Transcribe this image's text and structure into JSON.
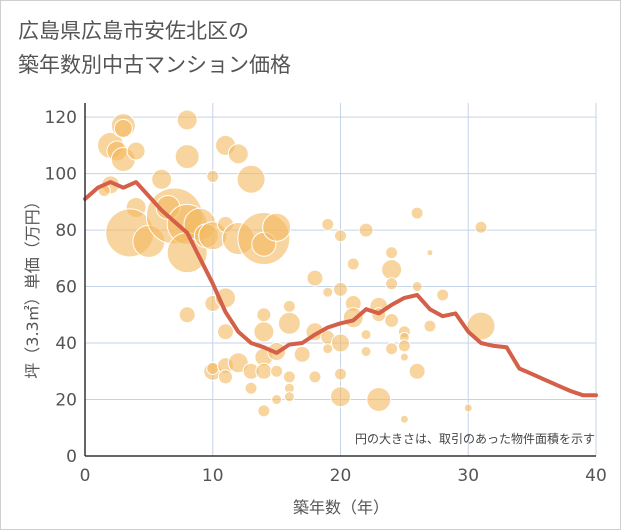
{
  "title": {
    "line1": "広島県広島市安佐北区の",
    "line2": "築年数別中古マンション価格"
  },
  "colors": {
    "bubble_fill": "#f3b95f",
    "bubble_opacity": 0.6,
    "line": "#d4604a",
    "grid": "#c5d3e6",
    "text": "#555555"
  },
  "chart_data": {
    "type": "scatter",
    "xlabel": "築年数（年）",
    "ylabel": "坪（3.3㎡）単価（万円）",
    "xlim": [
      0,
      40
    ],
    "ylim": [
      0,
      125
    ],
    "xticks": [
      "0",
      "10",
      "20",
      "30",
      "40"
    ],
    "yticks": [
      "0",
      "20",
      "40",
      "60",
      "80",
      "100",
      "120"
    ],
    "grid": true,
    "annotation": "円の大きさは、取引のあった物件面積を示す",
    "bubbles": [
      {
        "x": 2,
        "y": 110,
        "size": 13
      },
      {
        "x": 2.5,
        "y": 108,
        "size": 10
      },
      {
        "x": 3,
        "y": 117,
        "size": 12
      },
      {
        "x": 3,
        "y": 116,
        "size": 9
      },
      {
        "x": 3,
        "y": 105,
        "size": 12
      },
      {
        "x": 4,
        "y": 108,
        "size": 9
      },
      {
        "x": 2,
        "y": 96,
        "size": 9
      },
      {
        "x": 1.5,
        "y": 94,
        "size": 6
      },
      {
        "x": 4,
        "y": 88,
        "size": 10
      },
      {
        "x": 3.5,
        "y": 79,
        "size": 24
      },
      {
        "x": 5,
        "y": 76,
        "size": 16
      },
      {
        "x": 6,
        "y": 98,
        "size": 10
      },
      {
        "x": 7,
        "y": 85,
        "size": 28
      },
      {
        "x": 6.5,
        "y": 88,
        "size": 12
      },
      {
        "x": 8,
        "y": 82,
        "size": 20
      },
      {
        "x": 8,
        "y": 72,
        "size": 20
      },
      {
        "x": 9,
        "y": 82,
        "size": 16
      },
      {
        "x": 9.5,
        "y": 78,
        "size": 12
      },
      {
        "x": 8,
        "y": 119,
        "size": 10
      },
      {
        "x": 8,
        "y": 106,
        "size": 12
      },
      {
        "x": 10,
        "y": 99,
        "size": 6
      },
      {
        "x": 11,
        "y": 110,
        "size": 10
      },
      {
        "x": 12,
        "y": 107,
        "size": 10
      },
      {
        "x": 13,
        "y": 98,
        "size": 14
      },
      {
        "x": 10,
        "y": 78,
        "size": 14
      },
      {
        "x": 11,
        "y": 82,
        "size": 8
      },
      {
        "x": 12,
        "y": 77,
        "size": 16
      },
      {
        "x": 14,
        "y": 77,
        "size": 26
      },
      {
        "x": 14,
        "y": 75,
        "size": 12
      },
      {
        "x": 15,
        "y": 81,
        "size": 14
      },
      {
        "x": 10,
        "y": 54,
        "size": 8
      },
      {
        "x": 11,
        "y": 56,
        "size": 10
      },
      {
        "x": 8,
        "y": 50,
        "size": 8
      },
      {
        "x": 11,
        "y": 44,
        "size": 8
      },
      {
        "x": 10,
        "y": 30,
        "size": 9
      },
      {
        "x": 10,
        "y": 31,
        "size": 6
      },
      {
        "x": 11,
        "y": 32,
        "size": 8
      },
      {
        "x": 12,
        "y": 33,
        "size": 10
      },
      {
        "x": 11,
        "y": 28,
        "size": 7
      },
      {
        "x": 13,
        "y": 30,
        "size": 8
      },
      {
        "x": 13,
        "y": 24,
        "size": 6
      },
      {
        "x": 14,
        "y": 50,
        "size": 7
      },
      {
        "x": 14,
        "y": 44,
        "size": 10
      },
      {
        "x": 14,
        "y": 35,
        "size": 9
      },
      {
        "x": 14,
        "y": 30,
        "size": 8
      },
      {
        "x": 15,
        "y": 37,
        "size": 9
      },
      {
        "x": 15,
        "y": 30,
        "size": 6
      },
      {
        "x": 14,
        "y": 16,
        "size": 6
      },
      {
        "x": 15,
        "y": 20,
        "size": 5
      },
      {
        "x": 16,
        "y": 53,
        "size": 6
      },
      {
        "x": 16,
        "y": 47,
        "size": 11
      },
      {
        "x": 16,
        "y": 28,
        "size": 6
      },
      {
        "x": 16,
        "y": 24,
        "size": 5
      },
      {
        "x": 16,
        "y": 21,
        "size": 5
      },
      {
        "x": 17,
        "y": 36,
        "size": 8
      },
      {
        "x": 18,
        "y": 63,
        "size": 8
      },
      {
        "x": 18,
        "y": 44,
        "size": 9
      },
      {
        "x": 18,
        "y": 28,
        "size": 6
      },
      {
        "x": 19,
        "y": 82,
        "size": 6
      },
      {
        "x": 19,
        "y": 58,
        "size": 5
      },
      {
        "x": 19,
        "y": 42,
        "size": 7
      },
      {
        "x": 19,
        "y": 38,
        "size": 5
      },
      {
        "x": 20,
        "y": 78,
        "size": 6
      },
      {
        "x": 20,
        "y": 59,
        "size": 7
      },
      {
        "x": 20,
        "y": 40,
        "size": 9
      },
      {
        "x": 20,
        "y": 29,
        "size": 6
      },
      {
        "x": 20,
        "y": 21,
        "size": 10
      },
      {
        "x": 21,
        "y": 68,
        "size": 6
      },
      {
        "x": 21,
        "y": 54,
        "size": 8
      },
      {
        "x": 21,
        "y": 49,
        "size": 10
      },
      {
        "x": 22,
        "y": 80,
        "size": 7
      },
      {
        "x": 22,
        "y": 43,
        "size": 5
      },
      {
        "x": 22,
        "y": 37,
        "size": 5
      },
      {
        "x": 23,
        "y": 53,
        "size": 9
      },
      {
        "x": 23,
        "y": 50,
        "size": 7
      },
      {
        "x": 23,
        "y": 20,
        "size": 12
      },
      {
        "x": 24,
        "y": 72,
        "size": 6
      },
      {
        "x": 24,
        "y": 66,
        "size": 10
      },
      {
        "x": 24,
        "y": 61,
        "size": 6
      },
      {
        "x": 24,
        "y": 48,
        "size": 7
      },
      {
        "x": 24,
        "y": 38,
        "size": 6
      },
      {
        "x": 25,
        "y": 44,
        "size": 6
      },
      {
        "x": 25,
        "y": 42,
        "size": 5
      },
      {
        "x": 25,
        "y": 39,
        "size": 6
      },
      {
        "x": 25,
        "y": 35,
        "size": 4
      },
      {
        "x": 25,
        "y": 13,
        "size": 4
      },
      {
        "x": 26,
        "y": 86,
        "size": 6
      },
      {
        "x": 26,
        "y": 60,
        "size": 5
      },
      {
        "x": 26,
        "y": 30,
        "size": 8
      },
      {
        "x": 27,
        "y": 72,
        "size": 3
      },
      {
        "x": 27,
        "y": 46,
        "size": 6
      },
      {
        "x": 28,
        "y": 57,
        "size": 6
      },
      {
        "x": 31,
        "y": 46,
        "size": 14
      },
      {
        "x": 31,
        "y": 81,
        "size": 6
      },
      {
        "x": 30,
        "y": 17,
        "size": 4
      }
    ],
    "series": [
      {
        "type": "line",
        "x": [
          0,
          1,
          2,
          3,
          4,
          5,
          6,
          7,
          8,
          9,
          10,
          11,
          12,
          13,
          14,
          15,
          16,
          17,
          18,
          19,
          20,
          21,
          22,
          23,
          24,
          25,
          26,
          27,
          28,
          29,
          30,
          31,
          32,
          33,
          34,
          35,
          36,
          37,
          38,
          39,
          40
        ],
        "y": [
          91,
          95,
          97,
          95,
          97,
          92,
          87,
          83,
          79,
          70,
          61,
          51,
          44,
          40,
          38.5,
          36.5,
          39.5,
          40,
          43,
          45.5,
          47,
          48,
          52,
          50.5,
          53.5,
          56,
          57,
          52,
          49.5,
          50.5,
          44,
          40,
          39,
          38.5,
          31,
          29,
          27,
          25,
          23,
          21.5,
          21.5
        ]
      }
    ]
  }
}
